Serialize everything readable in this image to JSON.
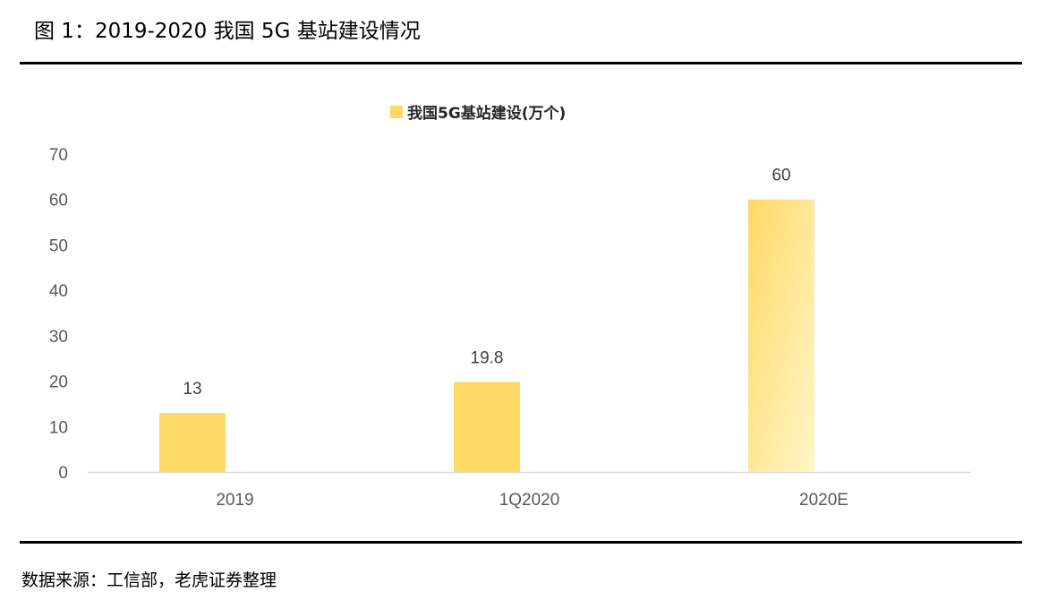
{
  "figure": {
    "title": "图 1：2019-2020 我国 5G 基站建设情况",
    "source": "数据来源：工信部，老虎证券整理"
  },
  "colors": {
    "bar_fill": "#ffd966",
    "bar_gradient_light": "#fff6c8",
    "axis_line": "#d9d9d9",
    "tick_text": "#595959",
    "label_text": "#404040",
    "rule": "#000000"
  },
  "chart_data": {
    "type": "bar",
    "categories": [
      "2019",
      "1Q2020",
      "2020E"
    ],
    "series": [
      {
        "name": "我国5G基站建设(万个)",
        "values": [
          13,
          19.8,
          60
        ],
        "data_labels": [
          "13",
          "19.8",
          "60"
        ]
      }
    ],
    "ylim": [
      0,
      70
    ],
    "yticks": [
      0,
      10,
      20,
      30,
      40,
      50,
      60,
      70
    ],
    "ytick_labels": [
      "0",
      "10",
      "20",
      "30",
      "40",
      "50",
      "60",
      "70"
    ],
    "xlabel": "",
    "ylabel": "",
    "legend_position": "top-center",
    "grid": false,
    "forecast_style_category": "2020E"
  }
}
